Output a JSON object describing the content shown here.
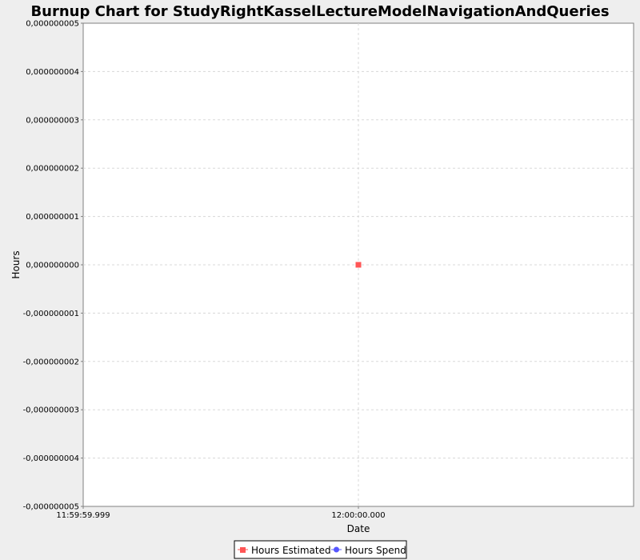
{
  "chart_data": {
    "type": "line",
    "title": "Burnup Chart for StudyRightKasselLectureModelNavigationAndQueries",
    "xlabel": "Date",
    "ylabel": "Hours",
    "x_ticks": [
      "11:59:59.999",
      "12:00:00.000"
    ],
    "y_ticks": [
      "0,000000005",
      "0,000000004",
      "0,000000003",
      "0,000000002",
      "0,000000001",
      "0,000000000",
      "-0,000000001",
      "-0,000000002",
      "-0,000000003",
      "-0,000000004",
      "-0,000000005"
    ],
    "ylim": [
      -5e-09,
      5e-09
    ],
    "grid": true,
    "legend_position": "bottom",
    "series": [
      {
        "name": "Hours Estimated",
        "color": "#ff5555",
        "marker": "square",
        "points": [
          {
            "x": "12:00:00.000",
            "y": 0
          }
        ]
      },
      {
        "name": "Hours Spend",
        "color": "#5555ff",
        "marker": "circle",
        "points": []
      }
    ]
  }
}
